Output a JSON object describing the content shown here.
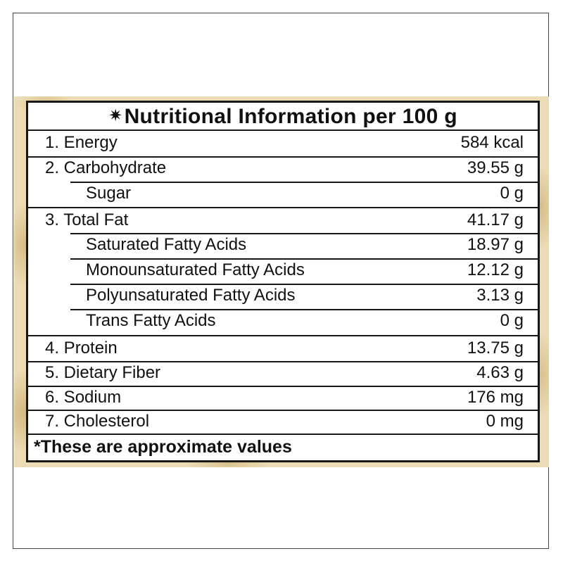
{
  "title": "Nutritional Information per 100 g",
  "title_marker": "✷",
  "rows": [
    {
      "label": "1. Energy",
      "value": "584  kcal"
    },
    {
      "label": "2. Carbohydrate",
      "value": "39.55 g"
    },
    {
      "label": "Sugar",
      "value": "0 g"
    },
    {
      "label": "3. Total Fat",
      "value": "41.17 g"
    },
    {
      "label": "Saturated Fatty Acids",
      "value": "18.97 g"
    },
    {
      "label": "Monounsaturated Fatty Acids",
      "value": "12.12 g"
    },
    {
      "label": "Polyunsaturated Fatty Acids",
      "value": "3.13 g"
    },
    {
      "label": "Trans Fatty Acids",
      "value": "0 g"
    },
    {
      "label": "4. Protein",
      "value": "13.75 g"
    },
    {
      "label": "5. Dietary Fiber",
      "value": "4.63 g"
    },
    {
      "label": "6. Sodium",
      "value": "176 mg"
    },
    {
      "label": "7. Cholesterol",
      "value": "0 mg"
    }
  ],
  "footer": "*These are approximate values",
  "colors": {
    "border": "#161616",
    "background_texture": "#ecdcb5"
  }
}
